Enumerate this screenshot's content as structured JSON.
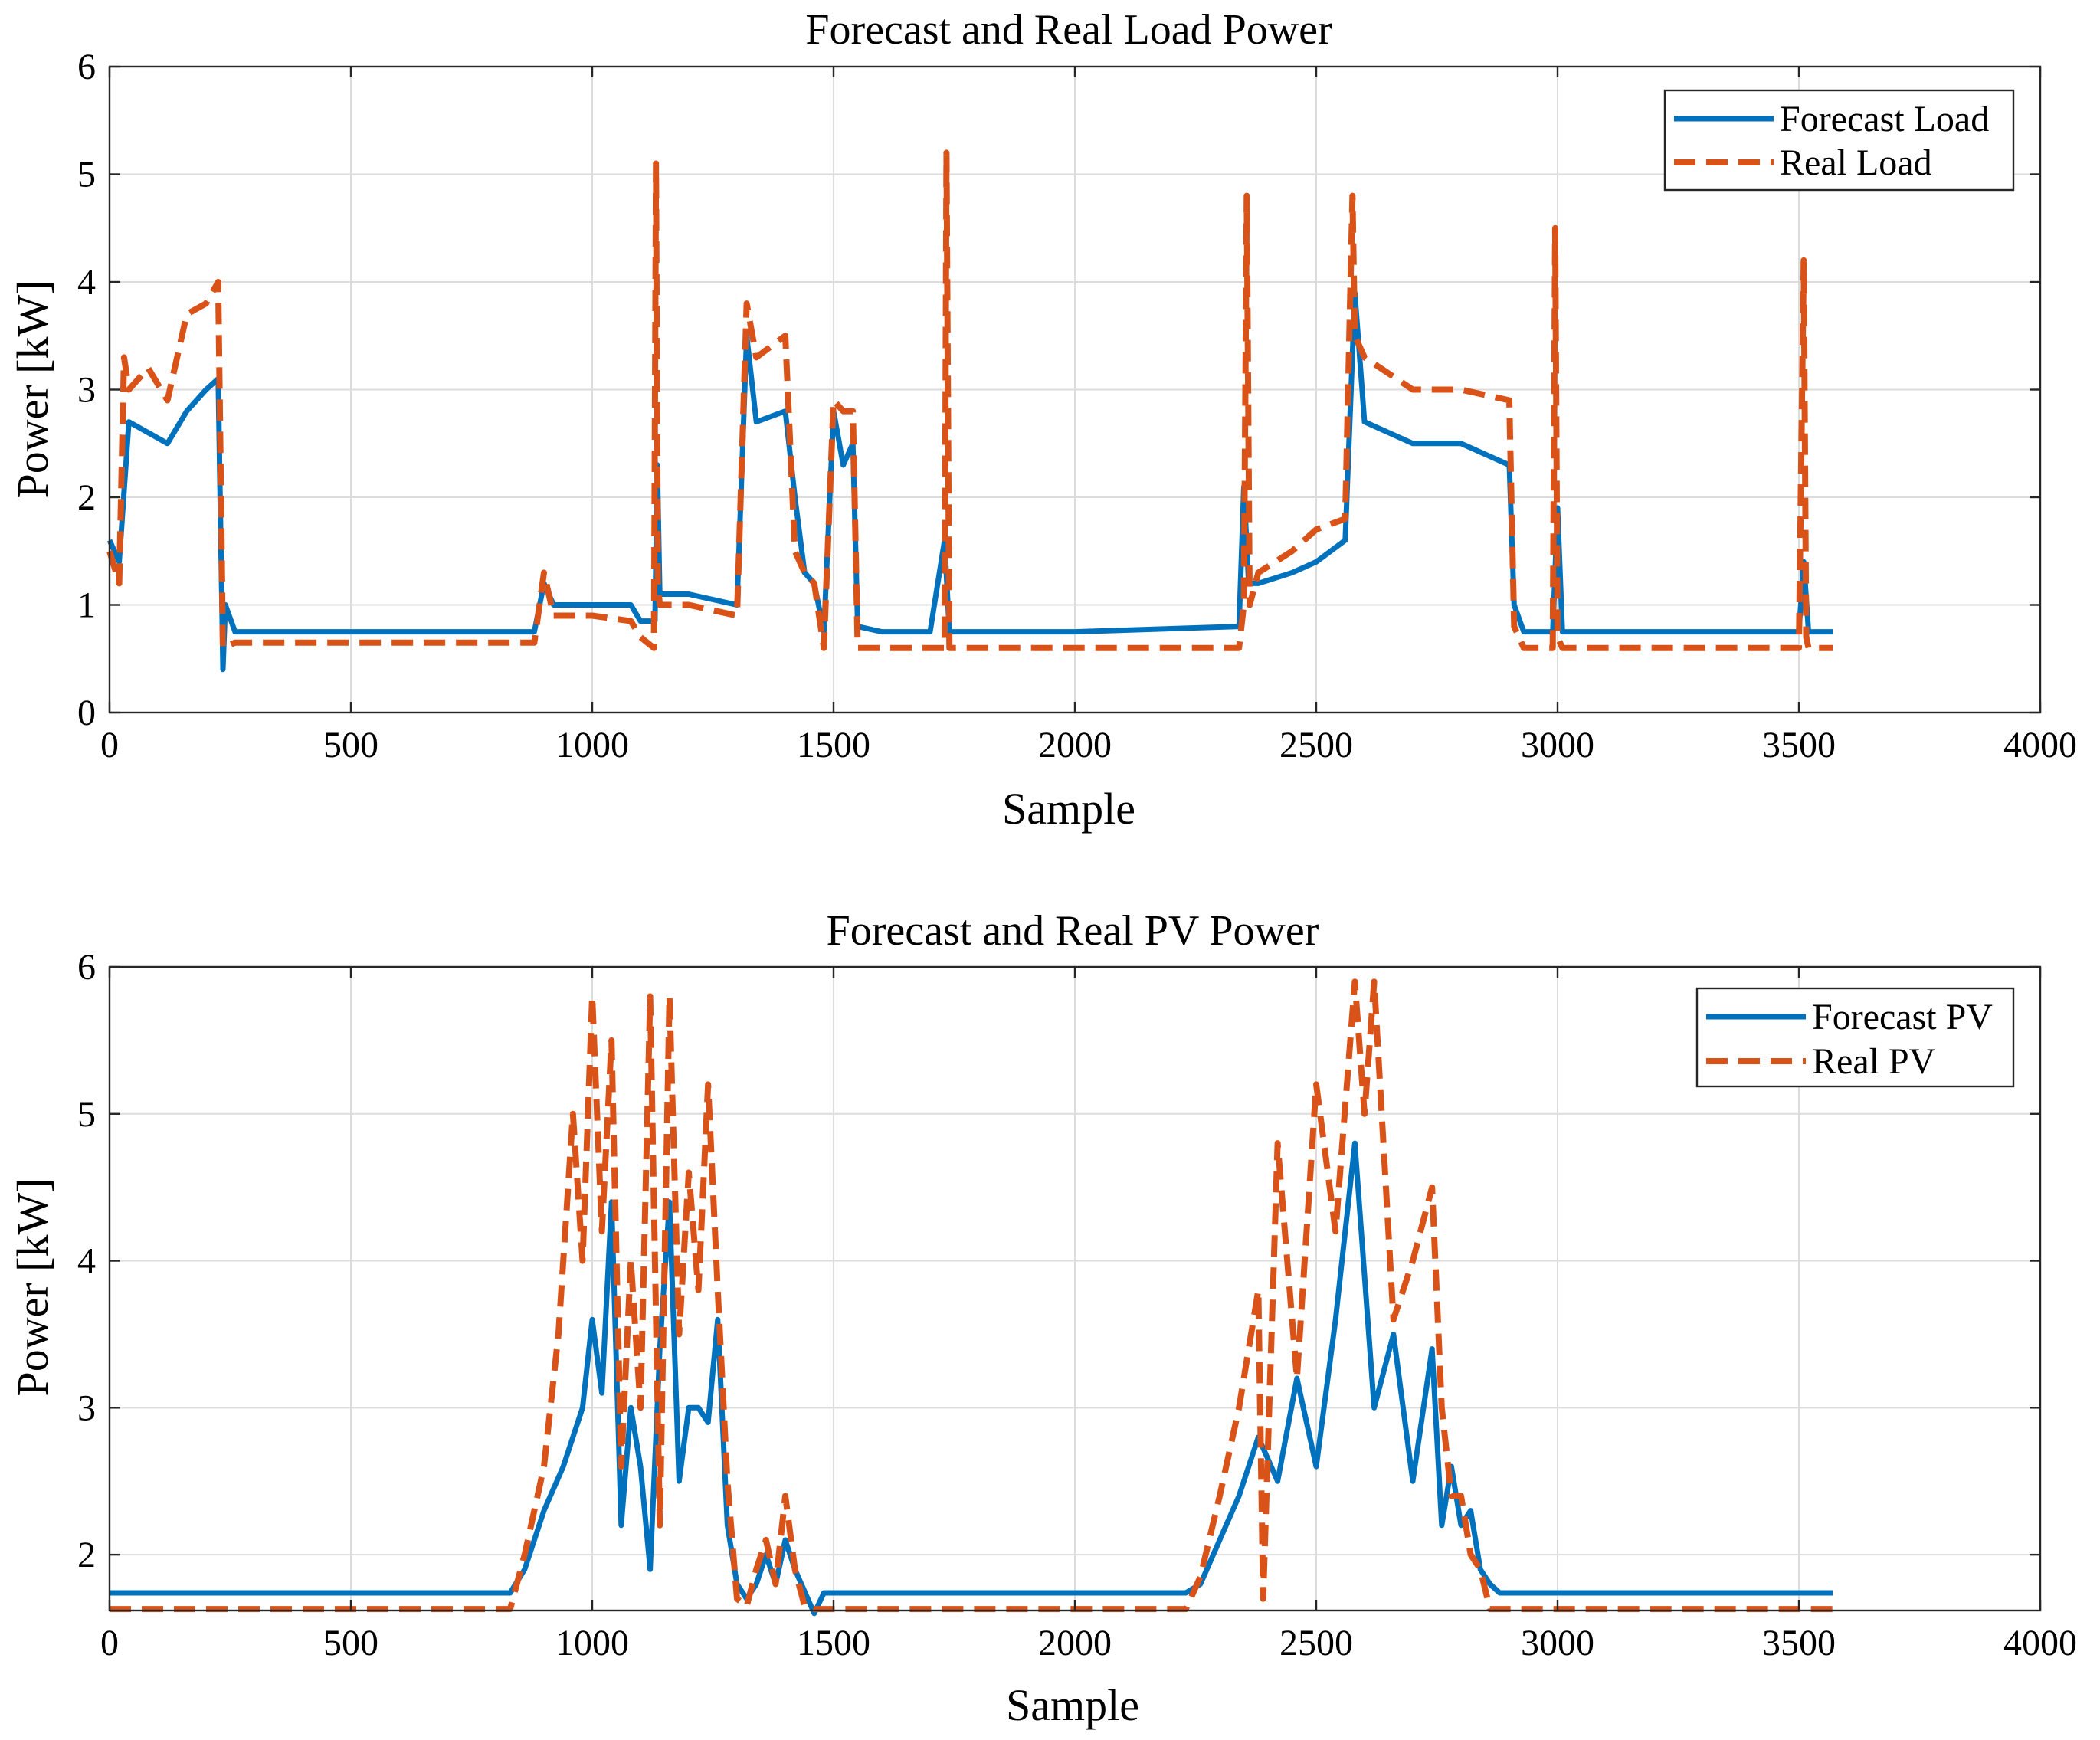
{
  "colors": {
    "forecast": "#0072BD",
    "real": "#D95319",
    "grid": "#DCDCDC",
    "axis": "#262626"
  },
  "chart_data": [
    {
      "type": "line",
      "title": "Forecast and Real Load Power",
      "xlabel": "Sample",
      "ylabel": "Power [kW]",
      "xlim": [
        0,
        4000
      ],
      "ylim": [
        0,
        6
      ],
      "xticks": [
        0,
        500,
        1000,
        1500,
        2000,
        2500,
        3000,
        3500,
        4000
      ],
      "yticks": [
        0,
        1,
        2,
        3,
        4,
        5,
        6
      ],
      "xtick_labels": [
        "0",
        "500",
        "1000",
        "1500",
        "2000",
        "2500",
        "3000",
        "3500",
        "4000"
      ],
      "ytick_labels": [
        "0",
        "1",
        "2",
        "3",
        "4",
        "5",
        "6"
      ],
      "grid": true,
      "legend_position": "top-right",
      "series": [
        {
          "name": "Forecast Load",
          "style": "solid",
          "x": [
            0,
            20,
            40,
            80,
            120,
            160,
            200,
            225,
            235,
            240,
            260,
            400,
            600,
            880,
            900,
            920,
            960,
            1000,
            1080,
            1100,
            1130,
            1135,
            1140,
            1200,
            1300,
            1320,
            1340,
            1400,
            1420,
            1440,
            1460,
            1480,
            1500,
            1520,
            1540,
            1550,
            1600,
            1700,
            1730,
            1740,
            1800,
            2000,
            2340,
            2350,
            2360,
            2380,
            2450,
            2500,
            2560,
            2580,
            2600,
            2700,
            2800,
            2900,
            2910,
            2930,
            2990,
            3000,
            3010,
            3200,
            3500,
            3510,
            3520,
            3570
          ],
          "y": [
            1.6,
            1.4,
            2.7,
            2.6,
            2.5,
            2.8,
            3.0,
            3.1,
            0.4,
            1.0,
            0.75,
            0.75,
            0.75,
            0.75,
            1.2,
            1.0,
            1.0,
            1.0,
            1.0,
            0.85,
            0.85,
            2.3,
            1.1,
            1.1,
            1.0,
            3.5,
            2.7,
            2.8,
            2.0,
            1.3,
            1.2,
            0.75,
            2.8,
            2.3,
            2.5,
            0.8,
            0.75,
            0.75,
            1.6,
            0.75,
            0.75,
            0.75,
            0.8,
            2.1,
            1.2,
            1.2,
            1.3,
            1.4,
            1.6,
            3.9,
            2.7,
            2.5,
            2.5,
            2.3,
            1.0,
            0.75,
            0.75,
            1.9,
            0.75,
            0.75,
            0.75,
            1.4,
            0.75,
            0.75
          ]
        },
        {
          "name": "Real Load",
          "style": "dashed",
          "x": [
            0,
            20,
            30,
            40,
            80,
            120,
            160,
            200,
            225,
            235,
            260,
            400,
            600,
            880,
            900,
            920,
            960,
            1000,
            1080,
            1100,
            1128,
            1132,
            1136,
            1140,
            1200,
            1300,
            1320,
            1340,
            1400,
            1420,
            1440,
            1460,
            1480,
            1500,
            1520,
            1540,
            1550,
            1600,
            1700,
            1730,
            1734,
            1740,
            1800,
            2000,
            2340,
            2350,
            2356,
            2362,
            2380,
            2450,
            2500,
            2560,
            2575,
            2580,
            2600,
            2700,
            2800,
            2900,
            2910,
            2930,
            2990,
            2995,
            3000,
            3010,
            3200,
            3500,
            3510,
            3515,
            3520,
            3570
          ],
          "y": [
            1.5,
            1.2,
            3.3,
            3.0,
            3.2,
            2.9,
            3.7,
            3.8,
            4.0,
            0.6,
            0.65,
            0.65,
            0.65,
            0.65,
            1.3,
            0.9,
            0.9,
            0.9,
            0.85,
            0.7,
            0.6,
            5.1,
            1.2,
            1.0,
            1.0,
            0.9,
            3.8,
            3.3,
            3.5,
            1.5,
            1.3,
            1.2,
            0.6,
            2.9,
            2.8,
            2.8,
            0.6,
            0.6,
            0.6,
            0.6,
            5.2,
            0.6,
            0.6,
            0.6,
            0.6,
            1.0,
            4.8,
            1.0,
            1.3,
            1.5,
            1.7,
            1.8,
            4.8,
            3.5,
            3.3,
            3.0,
            3.0,
            2.9,
            0.8,
            0.6,
            0.6,
            4.5,
            0.7,
            0.6,
            0.6,
            0.6,
            4.2,
            0.7,
            0.6,
            0.6
          ]
        }
      ]
    },
    {
      "type": "line",
      "title": "Forecast and Real PV Power",
      "xlabel": "Sample",
      "ylabel": "Power [kW]",
      "xlim": [
        0,
        4000
      ],
      "ylim": [
        1.62,
        6
      ],
      "xticks": [
        0,
        500,
        1000,
        1500,
        2000,
        2500,
        3000,
        3500,
        4000
      ],
      "yticks": [
        2,
        3,
        4,
        5,
        6
      ],
      "xtick_labels": [
        "0",
        "500",
        "1000",
        "1500",
        "2000",
        "2500",
        "3000",
        "3500",
        "4000"
      ],
      "ytick_labels": [
        "2",
        "3",
        "4",
        "5",
        "6"
      ],
      "grid": true,
      "legend_position": "top-right",
      "series": [
        {
          "name": "Forecast PV",
          "style": "solid",
          "x": [
            0,
            400,
            830,
            860,
            900,
            940,
            980,
            1000,
            1020,
            1040,
            1060,
            1080,
            1100,
            1120,
            1140,
            1160,
            1180,
            1200,
            1220,
            1240,
            1260,
            1280,
            1300,
            1320,
            1340,
            1360,
            1380,
            1400,
            1420,
            1440,
            1460,
            1480,
            1500,
            2000,
            2230,
            2260,
            2300,
            2340,
            2380,
            2420,
            2460,
            2500,
            2540,
            2580,
            2620,
            2660,
            2700,
            2740,
            2760,
            2780,
            2800,
            2820,
            2840,
            2860,
            2880,
            2900,
            2950,
            3200,
            3570
          ],
          "y": [
            1.74,
            1.74,
            1.74,
            1.9,
            2.3,
            2.6,
            3.0,
            3.6,
            3.1,
            4.4,
            2.2,
            3.0,
            2.6,
            1.9,
            3.4,
            4.4,
            2.5,
            3.0,
            3.0,
            2.9,
            3.6,
            2.2,
            1.8,
            1.7,
            1.8,
            2.0,
            1.8,
            2.1,
            1.9,
            1.75,
            1.6,
            1.74,
            1.74,
            1.74,
            1.74,
            1.8,
            2.1,
            2.4,
            2.8,
            2.5,
            3.2,
            2.6,
            3.6,
            4.8,
            3.0,
            3.5,
            2.5,
            3.4,
            2.2,
            2.6,
            2.2,
            2.3,
            1.9,
            1.8,
            1.74,
            1.74,
            1.74,
            1.74,
            1.74
          ]
        },
        {
          "name": "Real PV",
          "style": "dashed",
          "x": [
            0,
            400,
            830,
            860,
            900,
            930,
            960,
            980,
            1000,
            1020,
            1040,
            1060,
            1080,
            1100,
            1120,
            1140,
            1160,
            1180,
            1200,
            1220,
            1240,
            1260,
            1280,
            1300,
            1320,
            1340,
            1360,
            1380,
            1400,
            1420,
            1440,
            1460,
            1480,
            1500,
            2000,
            2230,
            2260,
            2300,
            2340,
            2380,
            2390,
            2420,
            2460,
            2500,
            2540,
            2580,
            2600,
            2620,
            2660,
            2700,
            2740,
            2760,
            2780,
            2800,
            2820,
            2840,
            2860,
            2880,
            2900,
            2950,
            3200,
            3570
          ],
          "y": [
            1.63,
            1.63,
            1.63,
            2.0,
            2.6,
            3.5,
            5.0,
            4.0,
            5.8,
            4.2,
            5.5,
            2.6,
            4.0,
            3.0,
            5.8,
            2.2,
            5.8,
            3.5,
            4.6,
            3.8,
            5.2,
            3.8,
            2.5,
            1.7,
            1.65,
            1.9,
            2.1,
            1.8,
            2.4,
            1.9,
            1.65,
            1.63,
            1.63,
            1.63,
            1.63,
            1.63,
            1.85,
            2.4,
            3.0,
            3.8,
            1.7,
            4.8,
            3.2,
            5.2,
            4.2,
            5.9,
            5.0,
            5.9,
            3.6,
            4.0,
            4.5,
            3.0,
            2.4,
            2.4,
            2.0,
            1.9,
            1.63,
            1.63,
            1.63,
            1.63,
            1.63,
            1.63
          ]
        }
      ]
    }
  ]
}
